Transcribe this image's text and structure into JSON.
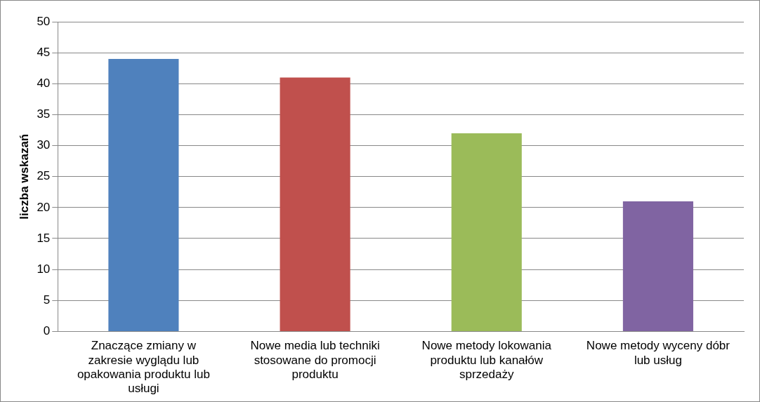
{
  "chart_data": {
    "type": "bar",
    "ylabel": "liczba wskazań",
    "categories": [
      "Znaczące zmiany w zakresie wyglądu lub opakowania produktu lub usługi",
      "Nowe media lub techniki stosowane do promocji produktu",
      "Nowe metody lokowania produktu lub kanałów sprzedaży",
      "Nowe metody wyceny dóbr lub usług"
    ],
    "values": [
      44,
      41,
      32,
      21
    ],
    "colors": [
      "#4f81bd",
      "#c0504d",
      "#9bbb59",
      "#8064a2"
    ],
    "ylim": [
      0,
      50
    ],
    "yticks": [
      0,
      5,
      10,
      15,
      20,
      25,
      30,
      35,
      40,
      45,
      50
    ],
    "grid": "y",
    "legend": false
  }
}
